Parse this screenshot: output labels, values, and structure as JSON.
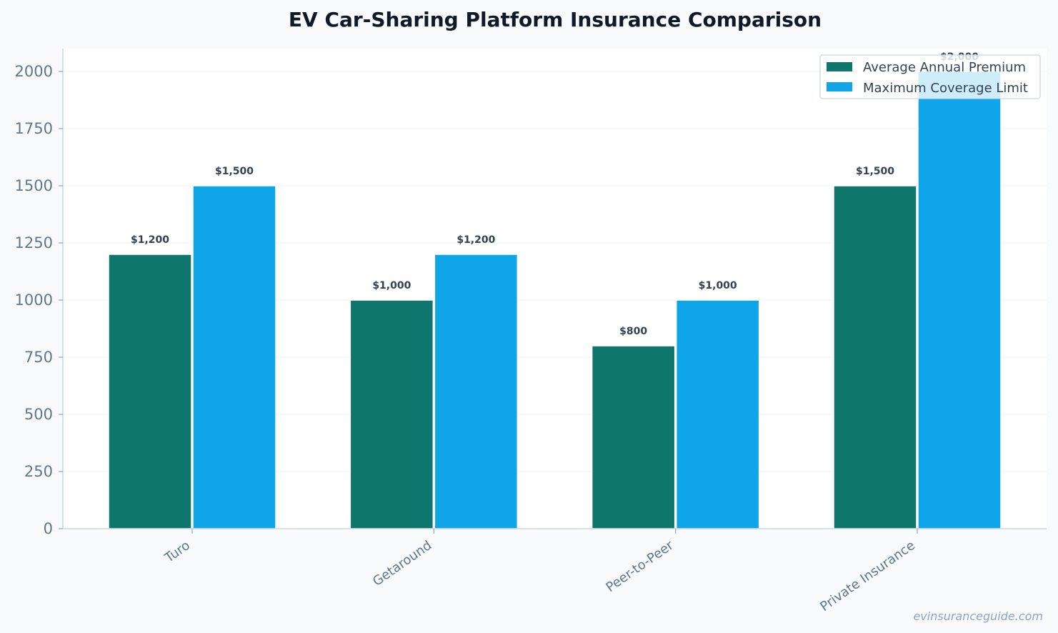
{
  "colors": {
    "background": "#f8fafc",
    "plot_background": "#ffffff",
    "series_1": "#0f766e",
    "series_2": "#0ea5e9",
    "axis": "#cbd5e1",
    "grid": "#e2e8f0",
    "text": "#334155",
    "tick_text": "#64748b"
  },
  "watermark": "evinsuranceguide.com",
  "chart_data": {
    "type": "bar",
    "title": "EV Car-Sharing Platform Insurance Comparison",
    "xlabel": "",
    "ylabel": "",
    "categories": [
      "Turo",
      "Getaround",
      "Peer-to-Peer",
      "Private Insurance"
    ],
    "series": [
      {
        "name": "Average Annual Premium",
        "values": [
          1200,
          1000,
          800,
          1500
        ],
        "labels": [
          "$1,200",
          "$1,000",
          "$800",
          "$1,500"
        ]
      },
      {
        "name": "Maximum Coverage Limit",
        "values": [
          1500,
          1200,
          1000,
          2000
        ],
        "labels": [
          "$1,500",
          "$1,200",
          "$1,000",
          "$2,000"
        ]
      }
    ],
    "ylim": [
      0,
      2100
    ],
    "yticks": [
      0,
      250,
      500,
      750,
      1000,
      1250,
      1500,
      1750,
      2000
    ],
    "grid": true,
    "legend": "top-right"
  }
}
